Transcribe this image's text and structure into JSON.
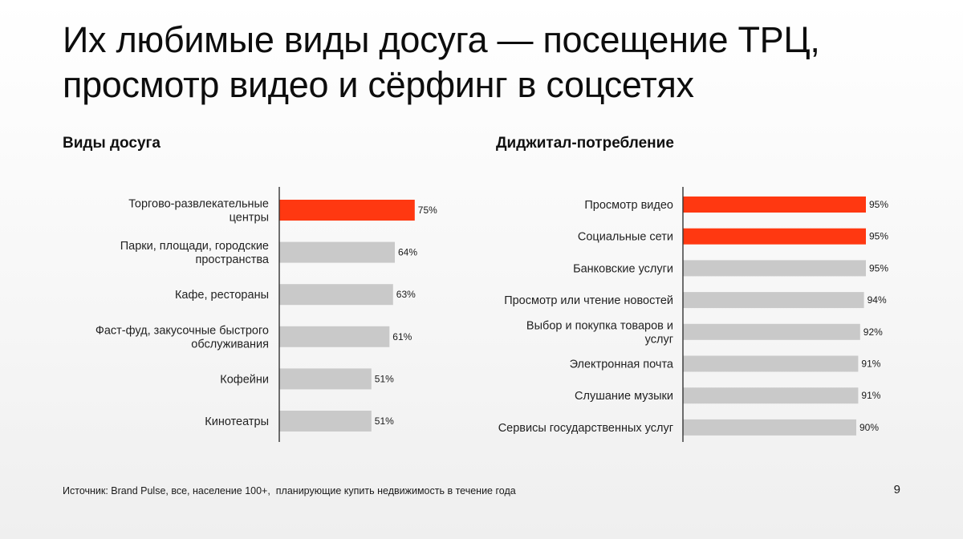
{
  "slide": {
    "title": "Их любимые виды досуга — посещение ТРЦ, просмотр видео и сёрфинг в соцсетях",
    "source": "Источник: Brand Pulse, все, население 100+,  планирующие купить недвижимость в течение года",
    "page_number": "9"
  },
  "colors": {
    "highlight": "#FF3811",
    "bar": "#C9C9C9",
    "axis": "#333333"
  },
  "chart_data": [
    {
      "type": "bar",
      "orientation": "horizontal",
      "title": "Виды досуга",
      "categories": [
        [
          "Торгово-развлекательные",
          "центры"
        ],
        [
          "Парки, площади, городские",
          "пространства"
        ],
        [
          "Кафе, рестораны"
        ],
        [
          "Фаст-фуд, закусочные быстрого",
          "обслуживания"
        ],
        [
          "Кофейни"
        ],
        [
          "Кинотеатры"
        ]
      ],
      "values": [
        75,
        64,
        63,
        61,
        51,
        51
      ],
      "value_labels": [
        "75%",
        "64%",
        "63%",
        "61%",
        "51%",
        "51%"
      ],
      "highlighted": [
        true,
        false,
        false,
        false,
        false,
        false
      ],
      "grid": false
    },
    {
      "type": "bar",
      "orientation": "horizontal",
      "title": "Диджитал-потребление",
      "categories": [
        [
          "Просмотр видео"
        ],
        [
          "Социальные сети"
        ],
        [
          "Банковские услуги"
        ],
        [
          "Просмотр или чтение новостей"
        ],
        [
          "Выбор и покупка товаров и",
          "услуг"
        ],
        [
          "Электронная почта"
        ],
        [
          "Слушание музыки"
        ],
        [
          "Сервисы государственных услуг"
        ]
      ],
      "values": [
        95,
        95,
        95,
        94,
        92,
        91,
        91,
        90
      ],
      "value_labels": [
        "95%",
        "95%",
        "95%",
        "94%",
        "92%",
        "91%",
        "91%",
        "90%"
      ],
      "highlighted": [
        true,
        true,
        false,
        false,
        false,
        false,
        false,
        false
      ],
      "grid": false
    }
  ]
}
